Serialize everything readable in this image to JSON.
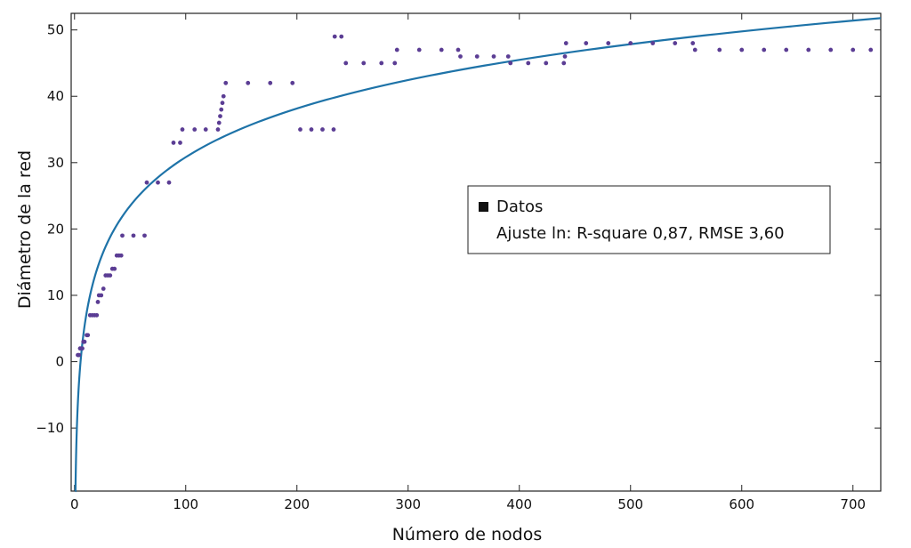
{
  "chart_data": {
    "type": "scatter",
    "title": "",
    "xlabel": "Número de nodos",
    "ylabel": "Diámetro de la red",
    "xlim": [
      -3,
      725
    ],
    "ylim": [
      -19.5,
      52.5
    ],
    "xticks": [
      0,
      100,
      200,
      300,
      400,
      500,
      600,
      700
    ],
    "yticks": [
      -10,
      0,
      10,
      20,
      30,
      40,
      50
    ],
    "grid": false,
    "legend_position": "right",
    "colors": {
      "data": "#5b3d94",
      "fit": "#1e73a8"
    },
    "legend": [
      "Datos",
      "Ajuste ln: R-square 0,87, RMSE 3,60"
    ],
    "series": [
      {
        "name": "Datos",
        "points": [
          [
            3,
            1
          ],
          [
            4,
            1
          ],
          [
            5,
            2
          ],
          [
            7,
            2
          ],
          [
            8,
            3
          ],
          [
            9,
            3
          ],
          [
            11,
            4
          ],
          [
            12,
            4
          ],
          [
            14,
            7
          ],
          [
            16,
            7
          ],
          [
            18,
            7
          ],
          [
            20,
            7
          ],
          [
            21,
            9
          ],
          [
            22,
            10
          ],
          [
            24,
            10
          ],
          [
            26,
            11
          ],
          [
            28,
            13
          ],
          [
            30,
            13
          ],
          [
            32,
            13
          ],
          [
            34,
            14
          ],
          [
            36,
            14
          ],
          [
            38,
            16
          ],
          [
            40,
            16
          ],
          [
            42,
            16
          ],
          [
            43,
            19
          ],
          [
            53,
            19
          ],
          [
            63,
            19
          ],
          [
            65,
            27
          ],
          [
            75,
            27
          ],
          [
            85,
            27
          ],
          [
            89,
            33
          ],
          [
            95,
            33
          ],
          [
            97,
            35
          ],
          [
            108,
            35
          ],
          [
            118,
            35
          ],
          [
            129,
            35
          ],
          [
            130,
            36
          ],
          [
            131,
            37
          ],
          [
            132,
            38
          ],
          [
            133,
            39
          ],
          [
            134,
            40
          ],
          [
            136,
            42
          ],
          [
            156,
            42
          ],
          [
            176,
            42
          ],
          [
            196,
            42
          ],
          [
            203,
            35
          ],
          [
            213,
            35
          ],
          [
            223,
            35
          ],
          [
            233,
            35
          ],
          [
            234,
            49
          ],
          [
            240,
            49
          ],
          [
            244,
            45
          ],
          [
            260,
            45
          ],
          [
            276,
            45
          ],
          [
            288,
            45
          ],
          [
            290,
            47
          ],
          [
            310,
            47
          ],
          [
            330,
            47
          ],
          [
            345,
            47
          ],
          [
            347,
            46
          ],
          [
            362,
            46
          ],
          [
            377,
            46
          ],
          [
            390,
            46
          ],
          [
            392,
            45
          ],
          [
            408,
            45
          ],
          [
            424,
            45
          ],
          [
            440,
            45
          ],
          [
            441,
            46
          ],
          [
            442,
            48
          ],
          [
            460,
            48
          ],
          [
            480,
            48
          ],
          [
            500,
            48
          ],
          [
            520,
            48
          ],
          [
            540,
            48
          ],
          [
            556,
            48
          ],
          [
            558,
            47
          ],
          [
            580,
            47
          ],
          [
            600,
            47
          ],
          [
            620,
            47
          ],
          [
            640,
            47
          ],
          [
            660,
            47
          ],
          [
            680,
            47
          ],
          [
            700,
            47
          ],
          [
            716,
            47
          ]
        ]
      },
      {
        "name": "Ajuste ln: R-square 0,87, RMSE 3,60",
        "model": "ln",
        "a": 10.58,
        "b": -17.9,
        "xmin": 0.7,
        "xmax": 725
      }
    ]
  }
}
